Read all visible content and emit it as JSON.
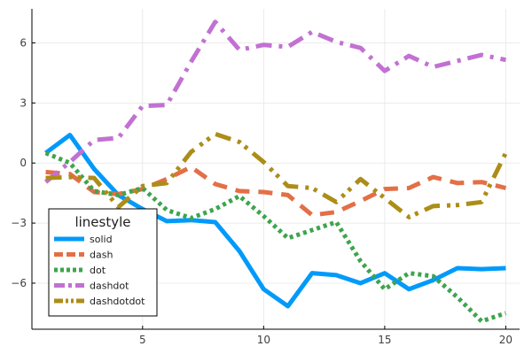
{
  "chart_data": {
    "type": "line",
    "title": "",
    "xlabel": "",
    "ylabel": "",
    "xlim": [
      0.43,
      20.57
    ],
    "ylim": [
      -8.3,
      7.7
    ],
    "grid": true,
    "legend_placement": "bottom-left",
    "legend_title": "linestyle",
    "x_ticks": [
      5,
      10,
      15,
      20
    ],
    "x_tick_labels": [
      "5",
      "10",
      "15",
      "20"
    ],
    "y_ticks": [
      -6,
      -3,
      0,
      3,
      6
    ],
    "y_tick_labels": [
      "−6",
      "−3",
      "0",
      "3",
      "6"
    ],
    "x": [
      1,
      2,
      3,
      4,
      5,
      6,
      7,
      8,
      9,
      10,
      11,
      12,
      13,
      14,
      15,
      16,
      17,
      18,
      19,
      20
    ],
    "series": [
      {
        "name": "solid",
        "linestyle": "solid",
        "color": "#009AFA",
        "values": [
          0.5,
          1.4,
          -0.3,
          -1.6,
          -2.3,
          -2.9,
          -2.85,
          -2.95,
          -4.4,
          -6.3,
          -7.15,
          -5.5,
          -5.6,
          -6.0,
          -5.5,
          -6.3,
          -5.85,
          -5.25,
          -5.3,
          -5.25
        ]
      },
      {
        "name": "dash",
        "linestyle": "dash",
        "color": "#E36F47",
        "values": [
          -0.45,
          -0.55,
          -1.45,
          -1.55,
          -1.3,
          -0.8,
          -0.2,
          -1.05,
          -1.4,
          -1.45,
          -1.6,
          -2.6,
          -2.45,
          -1.9,
          -1.3,
          -1.25,
          -0.7,
          -1.0,
          -0.95,
          -1.25
        ]
      },
      {
        "name": "dot",
        "linestyle": "dot",
        "color": "#3EA44E",
        "values": [
          0.5,
          0.0,
          -1.4,
          -1.6,
          -1.25,
          -2.35,
          -2.75,
          -2.3,
          -1.65,
          -2.65,
          -3.75,
          -3.35,
          -2.95,
          -4.9,
          -6.3,
          -5.5,
          -5.65,
          -6.7,
          -7.9,
          -7.5
        ]
      },
      {
        "name": "dashdot",
        "linestyle": "dashdot",
        "color": "#C271D2",
        "values": [
          -0.95,
          0.05,
          1.15,
          1.25,
          2.85,
          2.9,
          5.05,
          7.05,
          5.65,
          5.9,
          5.8,
          6.55,
          6.05,
          5.75,
          4.6,
          5.35,
          4.8,
          5.1,
          5.4,
          5.15
        ]
      },
      {
        "name": "dashdotdot",
        "linestyle": "dashdotdot",
        "color": "#AC8D18",
        "values": [
          -0.75,
          -0.7,
          -0.75,
          -2.2,
          -1.15,
          -1.0,
          0.55,
          1.45,
          1.05,
          0.05,
          -1.15,
          -1.25,
          -1.95,
          -0.8,
          -1.75,
          -2.7,
          -2.15,
          -2.1,
          -1.95,
          0.5
        ]
      }
    ]
  }
}
